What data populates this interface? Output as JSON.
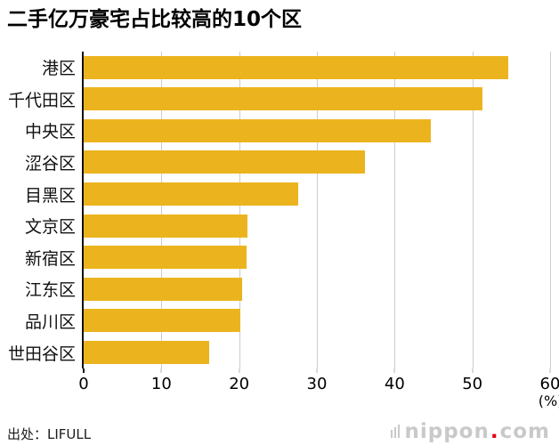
{
  "title": "二手亿万豪宅占比较高的10个区",
  "footer": {
    "source": "出处：LIFULL"
  },
  "watermark": {
    "name": "nippon",
    "dot": ".",
    "tld": "com"
  },
  "colors": {
    "bar": "#EBB41E",
    "axis": "#111111",
    "grid": "#CCCCCC",
    "text": "#000000",
    "watermark": "#C9C9C9",
    "watermark_dot": "#E60012"
  },
  "chart_data": {
    "type": "bar",
    "orientation": "horizontal",
    "title": "二手亿万豪宅占比较高的10个区",
    "categories": [
      "港区",
      "千代田区",
      "中央区",
      "涩谷区",
      "目黑区",
      "文京区",
      "新宿区",
      "江东区",
      "品川区",
      "世田谷区"
    ],
    "values": [
      54.6,
      51.3,
      44.7,
      36.2,
      27.6,
      21.1,
      20.9,
      20.4,
      20.2,
      16.1
    ],
    "xlim": [
      0,
      60
    ],
    "xticks": [
      0,
      10,
      20,
      30,
      40,
      50,
      60
    ],
    "xlabel": "(%)",
    "unit": "%",
    "grid": true,
    "legend": false,
    "source": "LIFULL"
  }
}
